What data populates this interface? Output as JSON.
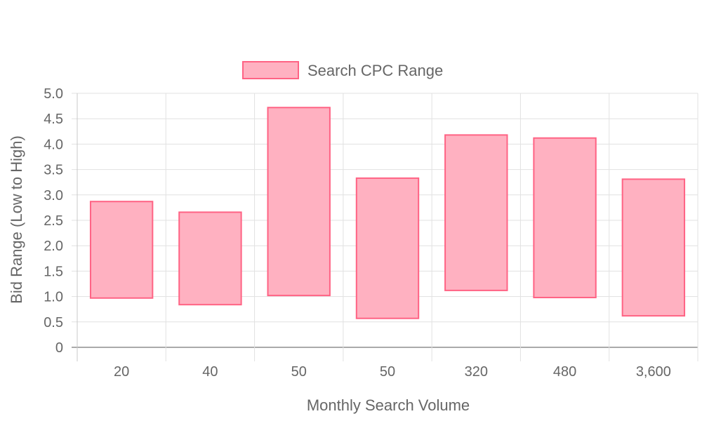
{
  "chart_data": {
    "type": "bar",
    "floating": true,
    "title": "",
    "xlabel": "Monthly Search Volume",
    "ylabel": "Bid Range (Low to High)",
    "categories": [
      "20",
      "40",
      "50",
      "50",
      "320",
      "480",
      "3,600"
    ],
    "series": [
      {
        "name": "Search CPC Range",
        "low": [
          0.97,
          0.84,
          1.02,
          0.57,
          1.12,
          0.98,
          0.62
        ],
        "high": [
          2.87,
          2.66,
          4.72,
          3.33,
          4.18,
          4.12,
          3.31
        ]
      }
    ],
    "ylim": [
      0,
      5
    ],
    "yticks": [
      "0",
      "0.5",
      "1.0",
      "1.5",
      "2.0",
      "2.5",
      "3.0",
      "3.5",
      "4.0",
      "4.5",
      "5.0"
    ],
    "grid": true,
    "legend": "top-center",
    "colors": {
      "bar_fill": "#ffb1c1",
      "bar_stroke": "#ff6384",
      "grid": "#e1e1e1",
      "axis": "#c8c8c8"
    }
  }
}
